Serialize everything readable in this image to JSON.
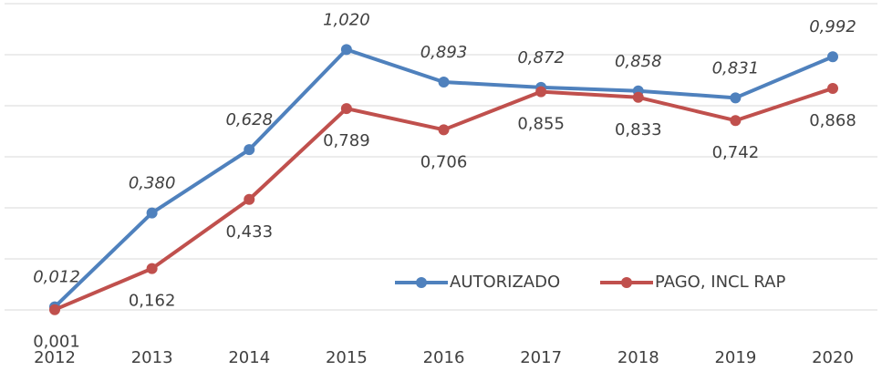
{
  "chart_data": {
    "type": "line",
    "categories": [
      "2012",
      "2013",
      "2014",
      "2015",
      "2016",
      "2017",
      "2018",
      "2019",
      "2020"
    ],
    "series": [
      {
        "name": "AUTORIZADO",
        "color": "#4f81bd",
        "values": [
          0.012,
          0.38,
          0.628,
          1.02,
          0.893,
          0.872,
          0.858,
          0.831,
          0.992
        ],
        "value_labels": [
          "0,012",
          "0,380",
          "0,628",
          "1,020",
          "0,893",
          "0,872",
          "0,858",
          "0,831",
          "0,992"
        ]
      },
      {
        "name": "PAGO, INCL RAP",
        "color": "#c0504d",
        "values": [
          0.001,
          0.162,
          0.433,
          0.789,
          0.706,
          0.855,
          0.833,
          0.742,
          0.868
        ],
        "value_labels": [
          "0,001",
          "0,162",
          "0,433",
          "0,789",
          "0,706",
          "0,855",
          "0,833",
          "0,742",
          "0,868"
        ]
      }
    ],
    "ylim": [
      0,
      1.2
    ],
    "yticks": [
      0,
      0.2,
      0.4,
      0.6,
      0.8,
      1.0,
      1.2
    ],
    "grid": true,
    "legend": "lower right"
  }
}
